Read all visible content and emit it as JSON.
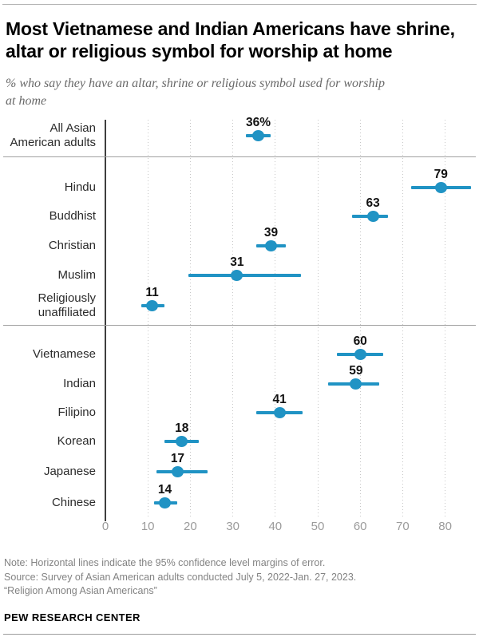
{
  "header": {
    "title": "Most Vietnamese and Indian Americans have shrine,\naltar or religious symbol for worship at home",
    "subtitle": "% who say they have an altar, shrine or religious symbol used for worship\nat home"
  },
  "chart_data": {
    "type": "scatter",
    "subtype": "dot-plot-with-error-bars",
    "title": "Most Vietnamese and Indian Americans have shrine, altar or religious symbol for worship at home",
    "subtitle": "% who say they have an altar, shrine or religious symbol used for worship at home",
    "xlabel": "",
    "ylabel": "",
    "x_ticks": [
      0,
      10,
      20,
      30,
      40,
      50,
      60,
      70,
      80
    ],
    "xlim": [
      0,
      86.5
    ],
    "grid": "vertical-dotted",
    "dot_color": "#2093c4",
    "rows": [
      {
        "category": "All Asian\nAmerican adults",
        "value": 36,
        "label": "36%",
        "ci": [
          33,
          39
        ]
      },
      {
        "category": "Hindu",
        "value": 79,
        "label": "79",
        "ci": [
          72,
          86
        ]
      },
      {
        "category": "Buddhist",
        "value": 63,
        "label": "63",
        "ci": [
          58,
          66.5
        ]
      },
      {
        "category": "Christian",
        "value": 39,
        "label": "39",
        "ci": [
          35.5,
          42.5
        ]
      },
      {
        "category": "Muslim",
        "value": 31,
        "label": "31",
        "ci": [
          19.5,
          46
        ]
      },
      {
        "category": "Religiously\nunaffiliated",
        "value": 11,
        "label": "11",
        "ci": [
          8.5,
          14
        ]
      },
      {
        "category": "Vietnamese",
        "value": 60,
        "label": "60",
        "ci": [
          54.5,
          65.5
        ]
      },
      {
        "category": "Indian",
        "value": 59,
        "label": "59",
        "ci": [
          52.5,
          64.5
        ]
      },
      {
        "category": "Filipino",
        "value": 41,
        "label": "41",
        "ci": [
          35.5,
          46.5
        ]
      },
      {
        "category": "Korean",
        "value": 18,
        "label": "18",
        "ci": [
          14,
          22
        ]
      },
      {
        "category": "Japanese",
        "value": 17,
        "label": "17",
        "ci": [
          12,
          24
        ]
      },
      {
        "category": "Chinese",
        "value": 14,
        "label": "14",
        "ci": [
          11.5,
          17
        ]
      }
    ],
    "group_separators_after_row": [
      0,
      5
    ]
  },
  "footer": {
    "note": "Note: Horizontal lines indicate the 95% confidence level margins of error.",
    "source": "Source: Survey of Asian American adults conducted July 5, 2022-Jan. 27, 2023.",
    "quote": "“Religion Among Asian Americans”",
    "brand": "PEW RESEARCH CENTER"
  }
}
